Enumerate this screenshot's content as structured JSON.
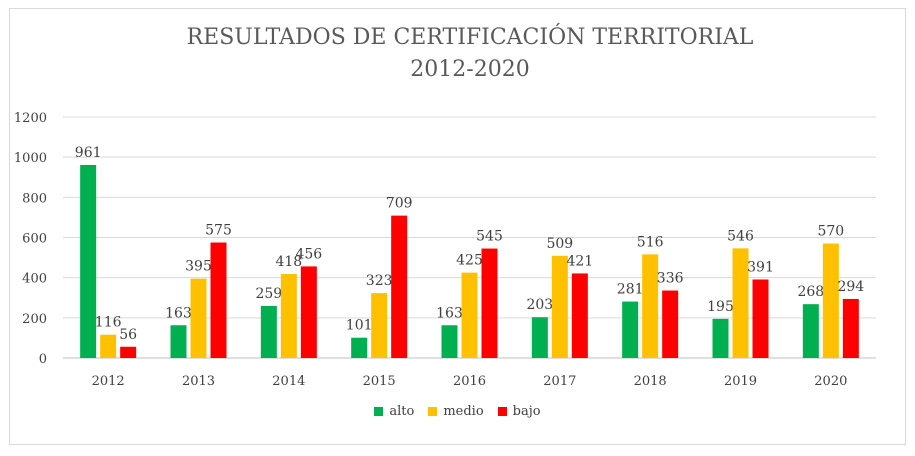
{
  "chart_data": {
    "type": "bar",
    "title": "RESULTADOS DE CERTIFICACIÓN TERRITORIAL",
    "subtitle": "2012-2020",
    "categories": [
      "2012",
      "2013",
      "2014",
      "2015",
      "2016",
      "2017",
      "2018",
      "2019",
      "2020"
    ],
    "series": [
      {
        "name": "alto",
        "color": "#00b050",
        "values": [
          961,
          163,
          259,
          101,
          163,
          203,
          281,
          195,
          268
        ]
      },
      {
        "name": "medio",
        "color": "#ffc000",
        "values": [
          116,
          395,
          418,
          323,
          425,
          509,
          516,
          546,
          570
        ]
      },
      {
        "name": "bajo",
        "color": "#ff0000",
        "values": [
          56,
          575,
          456,
          709,
          545,
          421,
          336,
          391,
          294
        ]
      }
    ],
    "ylim": [
      0,
      1200
    ],
    "yticks": [
      0,
      200,
      400,
      600,
      800,
      1000,
      1200
    ],
    "grid": true,
    "legend_position": "bottom",
    "data_labels": true
  }
}
